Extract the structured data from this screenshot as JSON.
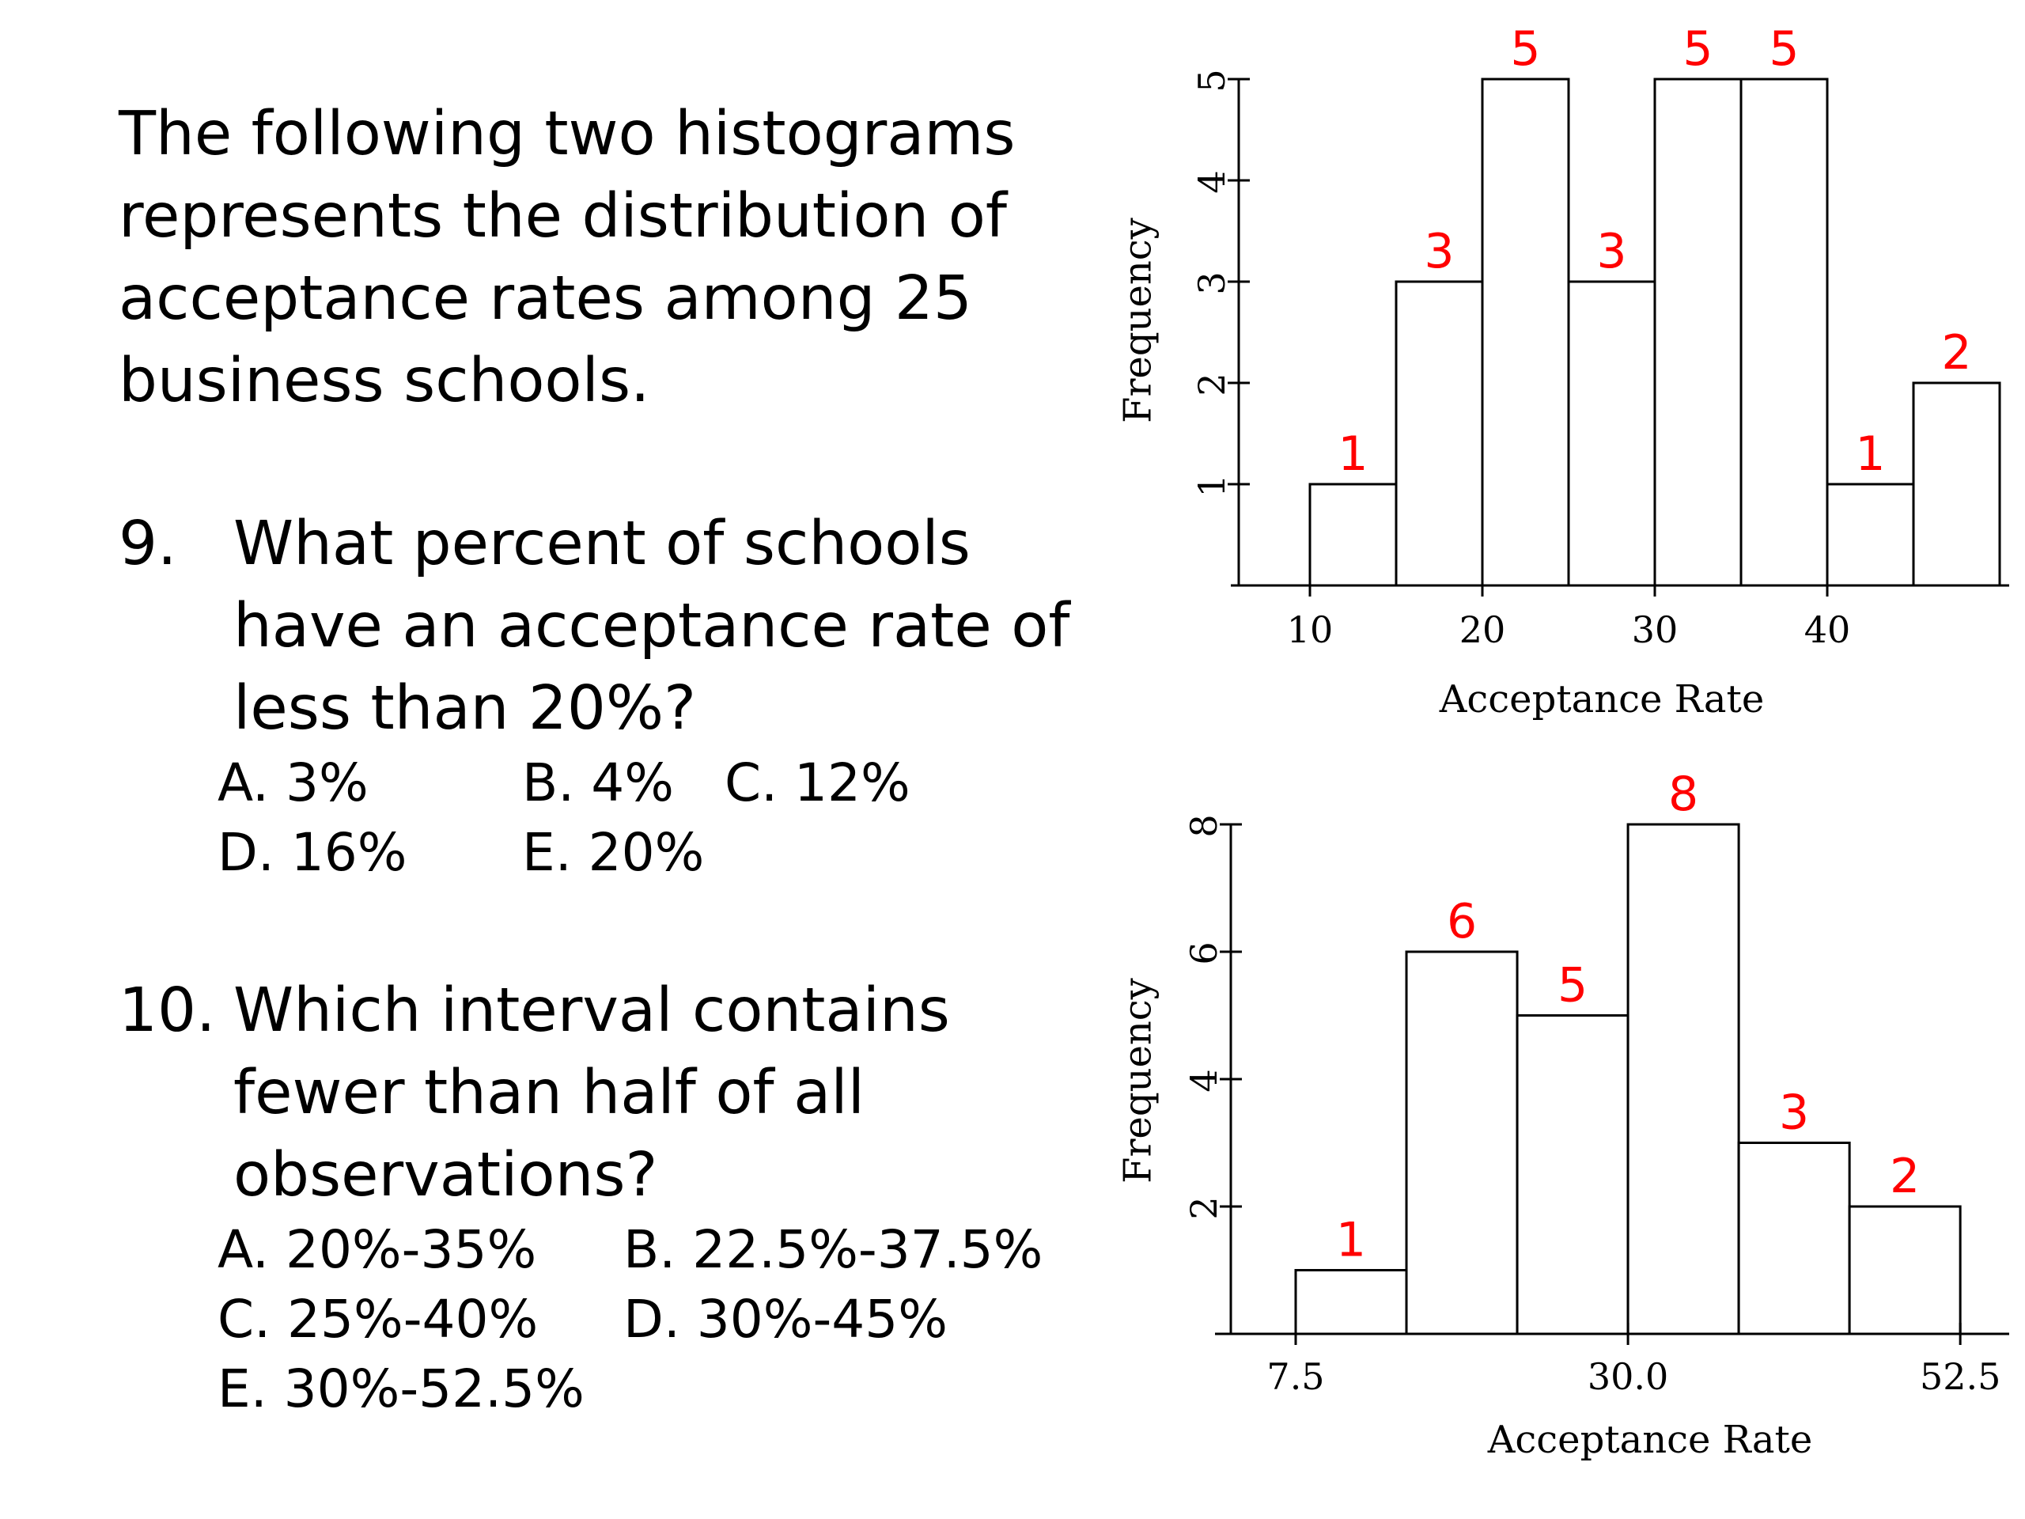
{
  "intro": "The following two histograms represents the distribution of acceptance rates among 25 business schools.",
  "q9": {
    "number": "9.",
    "text": "What percent of schools have an acceptance rate of less than 20%?",
    "options": [
      "A.   3%",
      "B. 4%",
      "C. 12%",
      "D. 16%",
      "E. 20%"
    ]
  },
  "q10": {
    "number": "10.",
    "text": "Which interval contains fewer than half of all observations?",
    "options": [
      "A. 20%-35%",
      "B. 22.5%-37.5%",
      "C. 25%-40%",
      "D. 30%-45%",
      "E. 30%-52.5%"
    ]
  },
  "chart_data": [
    {
      "type": "bar",
      "title": "",
      "xlabel": "Acceptance Rate",
      "ylabel": "Frequency",
      "bin_edges": [
        10,
        15,
        20,
        25,
        30,
        35,
        40,
        45,
        50
      ],
      "values": [
        1,
        3,
        5,
        3,
        5,
        5,
        1,
        2
      ],
      "data_labels": [
        "1",
        "3",
        "5",
        "3",
        "5",
        "5",
        "1",
        "2"
      ],
      "xticks": [
        10,
        20,
        30,
        40
      ],
      "xtick_labels": [
        "10",
        "20",
        "30",
        "40"
      ],
      "yticks": [
        1,
        2,
        3,
        4,
        5
      ],
      "ytick_labels": [
        "1",
        "2",
        "3",
        "4",
        "5"
      ],
      "ylim": [
        0,
        5
      ],
      "label_color": "#ff0000",
      "bar_fill": "#ffffff",
      "bar_stroke": "#000000"
    },
    {
      "type": "bar",
      "title": "",
      "xlabel": "Acceptance Rate",
      "ylabel": "Frequency",
      "bin_edges": [
        7.5,
        15,
        22.5,
        30,
        37.5,
        45,
        52.5
      ],
      "values": [
        1,
        6,
        5,
        8,
        3,
        2
      ],
      "data_labels": [
        "1",
        "6",
        "5",
        "8",
        "3",
        "2"
      ],
      "xticks": [
        7.5,
        30.0,
        52.5
      ],
      "xtick_labels": [
        "7.5",
        "30.0",
        "52.5"
      ],
      "yticks": [
        2,
        4,
        6,
        8
      ],
      "ytick_labels": [
        "2",
        "4",
        "6",
        "8"
      ],
      "ylim": [
        0,
        8
      ],
      "label_color": "#ff0000",
      "bar_fill": "#ffffff",
      "bar_stroke": "#000000"
    }
  ]
}
